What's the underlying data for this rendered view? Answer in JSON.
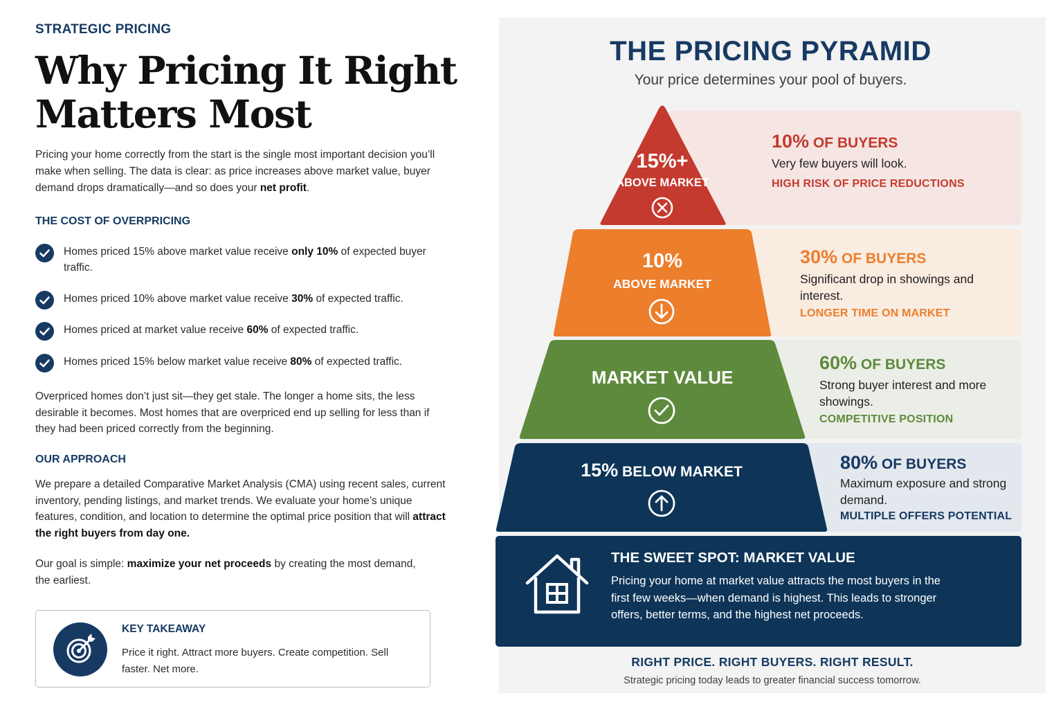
{
  "left": {
    "eyebrow": "STRATEGIC PRICING",
    "title_line1": "Why Pricing It Right",
    "title_line2": "Matters Most",
    "intro_before": "Pricing your home correctly from the start is the single most important decision you’ll make when selling. The data is clear: as price increases above market value, buyer demand drops dramatically—and so does your ",
    "intro_bold": "net profit",
    "intro_after": ".",
    "cost_heading": "THE COST OF OVERPRICING",
    "checks": [
      {
        "before": "Homes priced 15% above market value receive ",
        "bold": "only 10%",
        "after": " of expected buyer traffic."
      },
      {
        "before": "Homes priced 10% above market value receive ",
        "bold": "30%",
        "after": " of expected traffic."
      },
      {
        "before": "Homes priced at market value receive ",
        "bold": "60%",
        "after": " of expected traffic."
      },
      {
        "before": "Homes priced 15% below market value receive ",
        "bold": "80%",
        "after": " of expected traffic."
      }
    ],
    "stale_paragraph": "Overpriced homes don’t just sit—they get stale. The longer a home sits, the less desirable it becomes. Most homes that are overpriced end up selling for less than if they had been priced correctly from the beginning.",
    "approach_heading": "OUR APPROACH",
    "approach_before": "We prepare a detailed Comparative Market Analysis (CMA) using recent sales, current inventory, pending listings, and market trends. We evaluate your home’s unique features, condition, and location to determine the optimal price position that will ",
    "approach_bold": "attract the right buyers from day one.",
    "goal_before": "Our goal is simple: ",
    "goal_bold": "maximize your net proceeds",
    "goal_after": " by creating the most demand, the earliest.",
    "takeaway_title": "KEY TAKEAWAY",
    "takeaway_text": "Price it right. Attract more buyers. Create competition. Sell faster. Net more.",
    "takeaway_icon": "target-icon"
  },
  "panel": {
    "title": "THE PRICING PYRAMID",
    "subtitle": "Your price determines your pool of buyers.",
    "tiers": [
      {
        "label_top": "15%+",
        "label_bottom": "ABOVE MARKET",
        "icon": "x-circle-icon",
        "color": "#c43a2f",
        "pct": "10%",
        "pct_suffix": " OF BUYERS",
        "desc": "Very few buyers will look.",
        "tag": "HIGH RISK OF PRICE REDUCTIONS",
        "band_color": "#f6e6e3"
      },
      {
        "label_top": "10%",
        "label_bottom": "ABOVE MARKET",
        "icon": "arrow-down-circle-icon",
        "color": "#ec7e2c",
        "pct": "30%",
        "pct_suffix": " OF BUYERS",
        "desc": "Significant drop in showings and interest.",
        "tag": "LONGER TIME ON MARKET",
        "band_color": "#f9ece1"
      },
      {
        "label_top": "MARKET VALUE",
        "icon": "check-circle-icon",
        "color": "#5e8a3d",
        "pct": "60%",
        "pct_suffix": " OF BUYERS",
        "desc": "Strong buyer interest and more showings.",
        "tag": "COMPETITIVE POSITION",
        "band_color": "#ebeee6"
      },
      {
        "label_top": "15%",
        "label_bottom": " BELOW MARKET",
        "icon": "arrow-up-circle-icon",
        "color": "#0e3558",
        "pct": "80%",
        "pct_suffix": " OF BUYERS",
        "desc": "Maximum exposure and strong demand.",
        "tag": "MULTIPLE OFFERS POTENTIAL",
        "band_color": "#e3e8ee"
      }
    ],
    "sweet_spot": {
      "title": "THE SWEET SPOT: MARKET VALUE",
      "text": "Pricing your home at market value attracts the most buyers in the first few weeks—when demand is highest. This leads to stronger offers, better terms, and the highest net proceeds.",
      "icon": "house-icon"
    },
    "footer_title": "RIGHT PRICE. RIGHT BUYERS. RIGHT RESULT.",
    "footer_subtitle": "Strategic pricing today leads to greater financial success tomorrow."
  }
}
